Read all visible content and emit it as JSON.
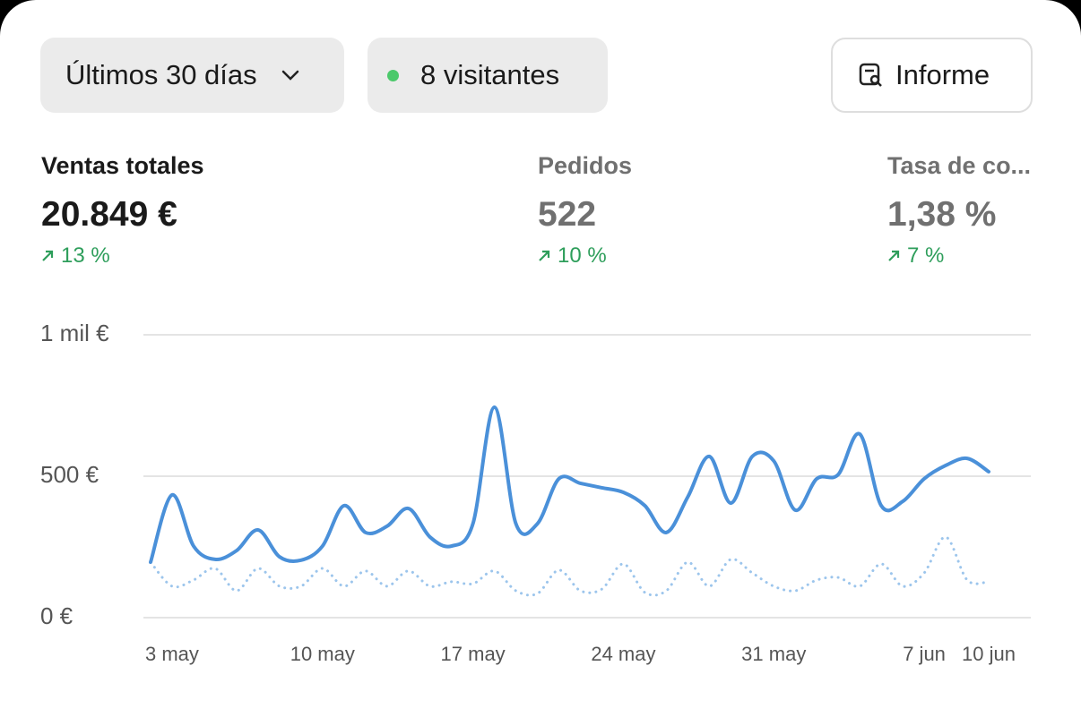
{
  "toolbar": {
    "range": "Últimos 30 días",
    "visitors": "8 visitantes",
    "report": "Informe"
  },
  "metrics": [
    {
      "title": "Ventas totales",
      "value": "20.849 €",
      "change": "13 %"
    },
    {
      "title": "Pedidos",
      "value": "522",
      "change": "10 %"
    },
    {
      "title": "Tasa de co...",
      "value": "1,38 %",
      "change": "7 %"
    }
  ],
  "chart_data": {
    "type": "line",
    "categories": [
      null,
      "3 may",
      null,
      null,
      null,
      null,
      null,
      null,
      "10 may",
      null,
      null,
      null,
      null,
      null,
      null,
      "17 may",
      null,
      null,
      null,
      null,
      null,
      null,
      "24 may",
      null,
      null,
      null,
      null,
      null,
      null,
      "31 may",
      null,
      null,
      null,
      null,
      null,
      null,
      "7 jun",
      null,
      null,
      "10 jun"
    ],
    "series": [
      {
        "color": "#4a90d9",
        "style": "solid",
        "values": [
          196,
          434,
          253,
          206,
          237,
          310,
          215,
          203,
          253,
          396,
          301,
          323,
          386,
          285,
          253,
          332,
          744,
          332,
          332,
          491,
          475,
          459,
          443,
          396,
          301,
          427,
          570,
          405,
          570,
          554,
          380,
          491,
          506,
          649,
          396,
          411,
          491,
          538,
          563,
          516
        ]
      },
      {
        "color": "#9cc5ec",
        "style": "dotted",
        "values": [
          196,
          111,
          133,
          174,
          95,
          174,
          111,
          111,
          174,
          111,
          165,
          111,
          165,
          111,
          127,
          120,
          165,
          95,
          85,
          168,
          95,
          101,
          190,
          89,
          95,
          196,
          111,
          206,
          158,
          111,
          95,
          133,
          142,
          111,
          190,
          111,
          158,
          285,
          133,
          127
        ]
      }
    ],
    "ylim": [
      0,
      1000
    ],
    "yticks": [
      {
        "value": 0,
        "label": "0 €"
      },
      {
        "value": 500,
        "label": "500 €"
      },
      {
        "value": 1000,
        "label": "1 mil €"
      }
    ],
    "grid": true
  }
}
